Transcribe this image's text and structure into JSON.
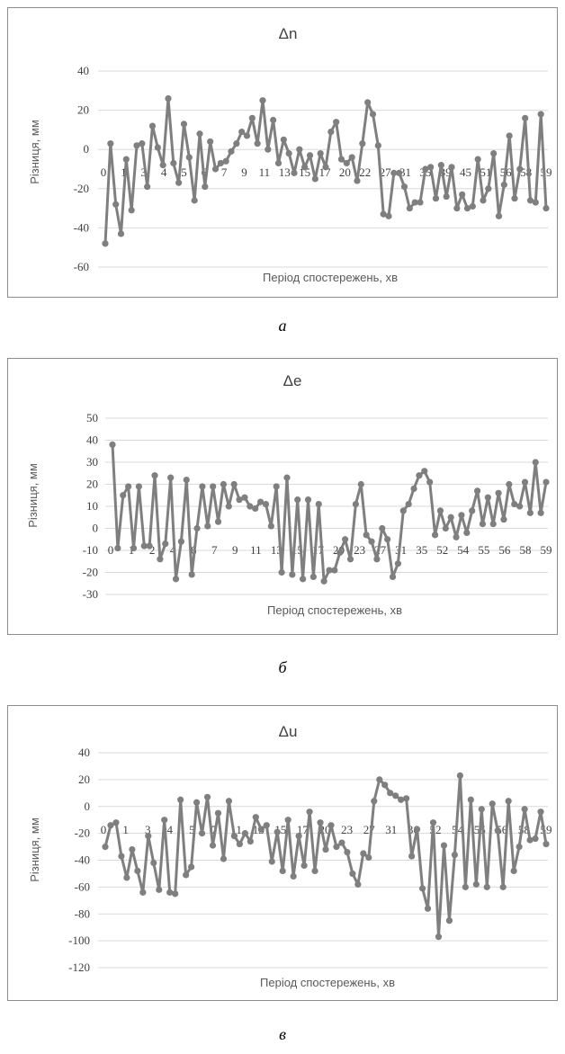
{
  "chart_data": [
    {
      "type": "line",
      "title": "Δn",
      "xlabel": "Період спостережень, хв",
      "ylabel": "Різниця, мм",
      "ylim": [
        -60,
        40
      ],
      "yticks": [
        40,
        20,
        0,
        -20,
        -40,
        -60
      ],
      "grid": true,
      "color": "#7f7f7f",
      "x_tick_labels": [
        "0",
        "1",
        "3",
        "4",
        "5",
        "6",
        "7",
        "9",
        "11",
        "13",
        "15",
        "17",
        "20",
        "22",
        "27",
        "31",
        "35",
        "39",
        "45",
        "51",
        "56",
        "58",
        "59"
      ],
      "series": [
        {
          "values": [
            -48,
            3,
            -28,
            -43,
            -5,
            -31,
            2,
            3,
            -19,
            12,
            1,
            -8,
            26,
            -7,
            -17,
            13,
            -4,
            -26,
            8,
            -19,
            4,
            -10,
            -7,
            -6,
            -1,
            3,
            9,
            7,
            16,
            3,
            25,
            0,
            15,
            -7,
            5,
            -2,
            -12,
            0,
            -9,
            -3,
            -15,
            -2,
            -9,
            9,
            14,
            -5,
            -7,
            -4,
            -16,
            3,
            24,
            18,
            2,
            -33,
            -34,
            -12,
            -12,
            -19,
            -30,
            -27,
            -27,
            -10,
            -9,
            -25,
            -8,
            -24,
            -9,
            -30,
            -23,
            -30,
            -29,
            -5,
            -26,
            -20,
            -2,
            -34,
            -18,
            7,
            -25,
            -10,
            16,
            -26,
            -27,
            18,
            -30
          ]
        }
      ]
    },
    {
      "type": "line",
      "title": "Δe",
      "xlabel": "Період спостережень, хв",
      "ylabel": "Різниця, мм",
      "ylim": [
        -30,
        50
      ],
      "yticks": [
        50,
        40,
        30,
        20,
        10,
        0,
        -10,
        -20,
        -30
      ],
      "grid": true,
      "color": "#7f7f7f",
      "x_tick_labels": [
        "0",
        "1",
        "2",
        "4",
        "6",
        "7",
        "9",
        "11",
        "13",
        "15",
        "17",
        "20",
        "23",
        "27",
        "31",
        "35",
        "52",
        "54",
        "55",
        "56",
        "58",
        "59"
      ],
      "series": [
        {
          "values": [
            38,
            -9,
            15,
            19,
            -9,
            19,
            -8,
            -8,
            24,
            -14,
            -7,
            23,
            -23,
            -6,
            22,
            -21,
            0,
            19,
            1,
            19,
            3,
            20,
            10,
            20,
            13,
            14,
            10,
            9,
            12,
            11,
            1,
            19,
            -20,
            23,
            -21,
            13,
            -23,
            13,
            -22,
            11,
            -24,
            -19,
            -19,
            -11,
            -5,
            -14,
            11,
            20,
            -3,
            -6,
            -14,
            0,
            -5,
            -22,
            -16,
            8,
            11,
            18,
            24,
            26,
            21,
            -3,
            8,
            0,
            5,
            -4,
            6,
            -2,
            8,
            17,
            2,
            14,
            2,
            16,
            4,
            20,
            11,
            10,
            21,
            7,
            30,
            7,
            21
          ]
        }
      ]
    },
    {
      "type": "line",
      "title": "Δu",
      "xlabel": "Період спостережень, хв",
      "ylabel": "Різниця, мм",
      "ylim": [
        -120,
        40
      ],
      "yticks": [
        40,
        20,
        0,
        -20,
        -40,
        -60,
        -80,
        -100,
        -120
      ],
      "grid": true,
      "color": "#7f7f7f",
      "x_tick_labels": [
        "0",
        "1",
        "3",
        "4",
        "5",
        "7",
        "11",
        "13",
        "15",
        "17",
        "20",
        "23",
        "27",
        "31",
        "36",
        "52",
        "54",
        "55",
        "56",
        "58",
        "59"
      ],
      "series": [
        {
          "values": [
            -30,
            -14,
            -12,
            -37,
            -53,
            -32,
            -48,
            -64,
            -22,
            -42,
            -62,
            -10,
            -64,
            -65,
            5,
            -51,
            -45,
            3,
            -20,
            7,
            -29,
            -5,
            -39,
            4,
            -22,
            -28,
            -20,
            -26,
            -8,
            -17,
            -14,
            -41,
            -19,
            -48,
            -10,
            -52,
            -22,
            -44,
            -4,
            -48,
            -12,
            -32,
            -14,
            -30,
            -27,
            -34,
            -50,
            -58,
            -35,
            -38,
            4,
            20,
            16,
            10,
            8,
            5,
            6,
            -37,
            -17,
            -61,
            -76,
            -12,
            -97,
            -29,
            -85,
            -36,
            23,
            -60,
            5,
            -58,
            -2,
            -60,
            2,
            -18,
            -60,
            4,
            -48,
            -30,
            -2,
            -25,
            -24,
            -4,
            -28
          ]
        }
      ]
    }
  ],
  "captions": [
    "а",
    "б",
    "в"
  ]
}
